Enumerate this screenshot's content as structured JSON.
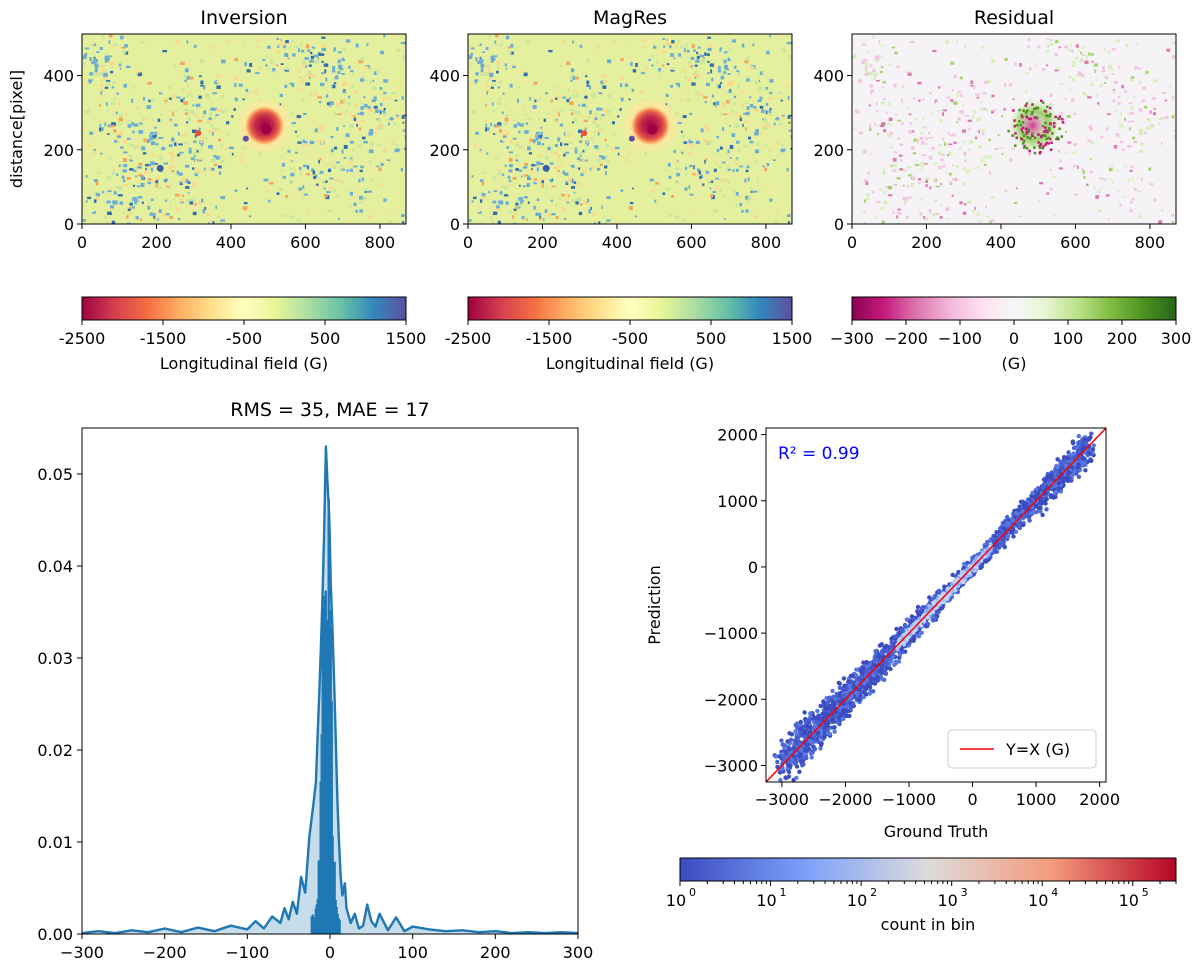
{
  "chart_data": [
    {
      "type": "heatmap",
      "title": "Inversion",
      "xlabel": "",
      "ylabel": "distance[pixel]",
      "xlim": [
        0,
        870
      ],
      "ylim": [
        0,
        512
      ],
      "xticks": [
        "0",
        "200",
        "400",
        "600",
        "800"
      ],
      "yticks": [
        "0",
        "200",
        "400"
      ],
      "colormap": "Spectral",
      "colorbar": {
        "label": "Longitudinal field (G)",
        "range": [
          -2500,
          1500
        ],
        "ticks": [
          "-2500",
          "-1500",
          "-500",
          "500",
          "1500"
        ]
      },
      "features": {
        "sunspot_center": [
          490,
          265
        ],
        "sunspot_radius_px": 55,
        "sunspot_min_G": -2500
      }
    },
    {
      "type": "heatmap",
      "title": "MagRes",
      "xlabel": "",
      "ylabel": "",
      "xlim": [
        0,
        870
      ],
      "ylim": [
        0,
        512
      ],
      "xticks": [
        "0",
        "200",
        "400",
        "600",
        "800"
      ],
      "yticks": [
        "0",
        "200",
        "400"
      ],
      "colormap": "Spectral",
      "colorbar": {
        "label": "Longitudinal field (G)",
        "range": [
          -2500,
          1500
        ],
        "ticks": [
          "-2500",
          "-1500",
          "-500",
          "500",
          "1500"
        ]
      }
    },
    {
      "type": "heatmap",
      "title": "Residual",
      "xlabel": "",
      "ylabel": "",
      "xlim": [
        0,
        870
      ],
      "ylim": [
        0,
        512
      ],
      "xticks": [
        "0",
        "200",
        "400",
        "600",
        "800"
      ],
      "yticks": [
        "0",
        "200",
        "400"
      ],
      "colormap": "PiYG",
      "colorbar": {
        "label": "(G)",
        "range": [
          -300,
          300
        ],
        "ticks": [
          "−300",
          "−200",
          "−100",
          "0",
          "100",
          "200",
          "300"
        ]
      }
    },
    {
      "type": "line",
      "title": "RMS = 35, MAE = 17",
      "xlabel": "",
      "ylabel": "",
      "xlim": [
        -300,
        300
      ],
      "ylim": [
        0,
        0.055
      ],
      "xticks": [
        "−300",
        "−200",
        "−100",
        "0",
        "100",
        "200",
        "300"
      ],
      "yticks": [
        "0.00",
        "0.01",
        "0.02",
        "0.03",
        "0.04",
        "0.05"
      ],
      "color": "#1f77b4",
      "series": [
        {
          "x": [
            -300,
            -280,
            -260,
            -240,
            -220,
            -200,
            -180,
            -160,
            -140,
            -120,
            -100,
            -90,
            -80,
            -70,
            -60,
            -55,
            -50,
            -45,
            -40,
            -35,
            -30,
            -25,
            -20,
            -17,
            -15,
            -13,
            -11,
            -9,
            -7,
            -5,
            -3,
            -1,
            0,
            1,
            3,
            5,
            7,
            9,
            11,
            13,
            15,
            18,
            20,
            25,
            30,
            35,
            40,
            45,
            50,
            55,
            60,
            70,
            80,
            90,
            100,
            120,
            140,
            160,
            180,
            200,
            220,
            240,
            260,
            280,
            300
          ],
          "y": [
            0.0001,
            0.0003,
            0.0001,
            0.0004,
            0.0002,
            0.0006,
            0.0002,
            0.0007,
            0.0003,
            0.0009,
            0.0005,
            0.0014,
            0.0006,
            0.0019,
            0.0012,
            0.0028,
            0.0016,
            0.0035,
            0.0022,
            0.0062,
            0.0045,
            0.0105,
            0.0142,
            0.0165,
            0.0215,
            0.0262,
            0.0312,
            0.037,
            0.044,
            0.053,
            0.049,
            0.0455,
            0.042,
            0.038,
            0.033,
            0.0275,
            0.021,
            0.0145,
            0.0098,
            0.0062,
            0.0042,
            0.0055,
            0.0028,
            0.0012,
            0.0022,
            0.0006,
            0.0009,
            0.0032,
            0.0014,
            0.0008,
            0.0022,
            0.0004,
            0.0018,
            0.0003,
            0.0008,
            0.0005,
            0.0003,
            0.0004,
            0.0002,
            0.0003,
            0.0001,
            0.0002,
            0.0001,
            0.0002,
            0.0001
          ]
        }
      ]
    },
    {
      "type": "scatter",
      "title": "",
      "xlabel": "Ground Truth",
      "ylabel": "Prediction",
      "xlim": [
        -3250,
        2100
      ],
      "ylim": [
        -3250,
        2100
      ],
      "xticks": [
        "−3000",
        "−2000",
        "−1000",
        "0",
        "1000",
        "2000"
      ],
      "yticks": [
        "−3000",
        "−2000",
        "−1000",
        "0",
        "1000",
        "2000"
      ],
      "annotation": "R² = 0.99",
      "annotation_color": "#0000ff",
      "reference_line": {
        "label": "Y=X (G)",
        "color": "#ff0000"
      },
      "legend_position": "lower-right",
      "data_extent": {
        "x_range": [
          -3000,
          1850
        ],
        "spread_sigma_G": 90
      },
      "colorbar": {
        "label": "count in bin",
        "scale": "log",
        "colormap": "coolwarm",
        "range": [
          1,
          300000
        ],
        "ticks": [
          "10",
          "10",
          "10",
          "10",
          "10",
          "10"
        ],
        "tick_exponents": [
          "0",
          "1",
          "2",
          "3",
          "4",
          "5"
        ]
      }
    }
  ]
}
